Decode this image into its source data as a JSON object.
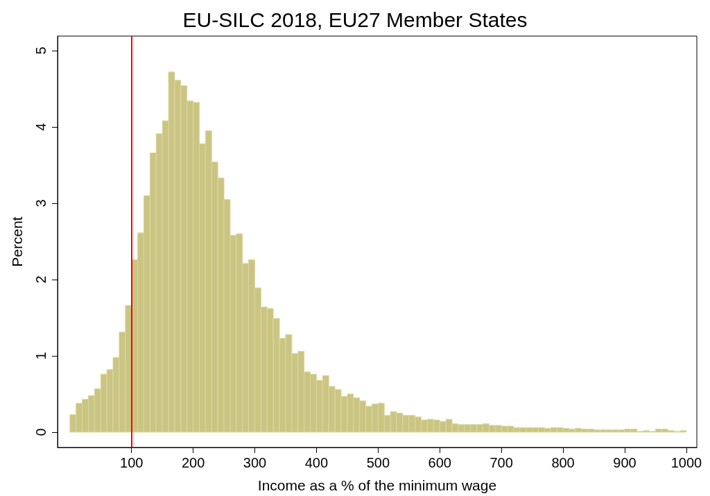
{
  "chart_data": {
    "type": "histogram",
    "title": "EU-SILC 2018, EU27 Member States",
    "xlabel": "Income as a % of the minimum wage",
    "ylabel": "Percent",
    "bins": [
      0,
      10,
      20,
      30,
      40,
      50,
      60,
      70,
      80,
      90,
      100,
      110,
      120,
      130,
      140,
      150,
      160,
      170,
      180,
      190,
      200,
      210,
      220,
      230,
      240,
      250,
      260,
      270,
      280,
      290,
      300,
      310,
      320,
      330,
      340,
      350,
      360,
      370,
      380,
      390,
      400,
      410,
      420,
      430,
      440,
      450,
      460,
      470,
      480,
      490,
      500,
      510,
      520,
      530,
      540,
      550,
      560,
      570,
      580,
      590,
      600,
      610,
      620,
      630,
      640,
      650,
      660,
      670,
      680,
      690,
      700,
      710,
      720,
      730,
      740,
      750,
      760,
      770,
      780,
      790,
      800,
      810,
      820,
      830,
      840,
      850,
      860,
      870,
      880,
      890,
      900,
      910,
      920,
      930,
      940,
      950,
      960,
      970,
      980,
      990,
      1000
    ],
    "values": [
      0.23,
      0.38,
      0.43,
      0.48,
      0.57,
      0.76,
      0.82,
      0.98,
      1.31,
      1.66,
      2.26,
      2.61,
      3.1,
      3.66,
      3.91,
      4.08,
      4.72,
      4.61,
      4.54,
      4.34,
      4.32,
      3.78,
      3.95,
      3.54,
      3.33,
      3.05,
      2.58,
      2.6,
      2.21,
      2.26,
      1.89,
      1.64,
      1.62,
      1.49,
      1.23,
      1.28,
      1.03,
      1.06,
      0.79,
      0.76,
      0.68,
      0.74,
      0.6,
      0.56,
      0.47,
      0.5,
      0.45,
      0.41,
      0.34,
      0.37,
      0.38,
      0.22,
      0.27,
      0.25,
      0.22,
      0.22,
      0.2,
      0.16,
      0.17,
      0.16,
      0.14,
      0.17,
      0.11,
      0.1,
      0.1,
      0.1,
      0.1,
      0.11,
      0.09,
      0.09,
      0.08,
      0.08,
      0.06,
      0.06,
      0.06,
      0.06,
      0.06,
      0.05,
      0.06,
      0.06,
      0.05,
      0.04,
      0.05,
      0.04,
      0.04,
      0.03,
      0.03,
      0.03,
      0.03,
      0.03,
      0.04,
      0.04,
      0.01,
      0.02,
      0.01,
      0.04,
      0.04,
      0.02,
      0.01,
      0.02
    ],
    "color": "#cbc583",
    "xlim": [
      -20,
      1017
    ],
    "xticks": [
      100,
      200,
      300,
      400,
      500,
      600,
      700,
      800,
      900,
      1000
    ],
    "ylim": [
      -0.2,
      5.19
    ],
    "yticks": [
      0,
      1,
      2,
      3,
      4,
      5
    ],
    "ref_lines": [
      {
        "axis": "x",
        "value": 100,
        "color": "#ff0000"
      }
    ],
    "grid": false
  }
}
